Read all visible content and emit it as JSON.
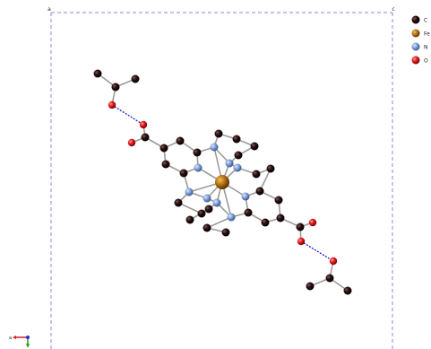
{
  "cell_labels": {
    "corner_a": "a",
    "corner_c": "c"
  },
  "legend": [
    {
      "symbol": "C",
      "color": "#1a0a0a"
    },
    {
      "symbol": "Fe",
      "color": "#b8740f"
    },
    {
      "symbol": "N",
      "color": "#7e9fd6"
    },
    {
      "symbol": "O",
      "color": "#e21818"
    }
  ],
  "axis_triad": {
    "x_label": "a",
    "x_color": "#d21a1a",
    "y_color": "#1aa51a",
    "z_color": "#2a2ad8"
  }
}
